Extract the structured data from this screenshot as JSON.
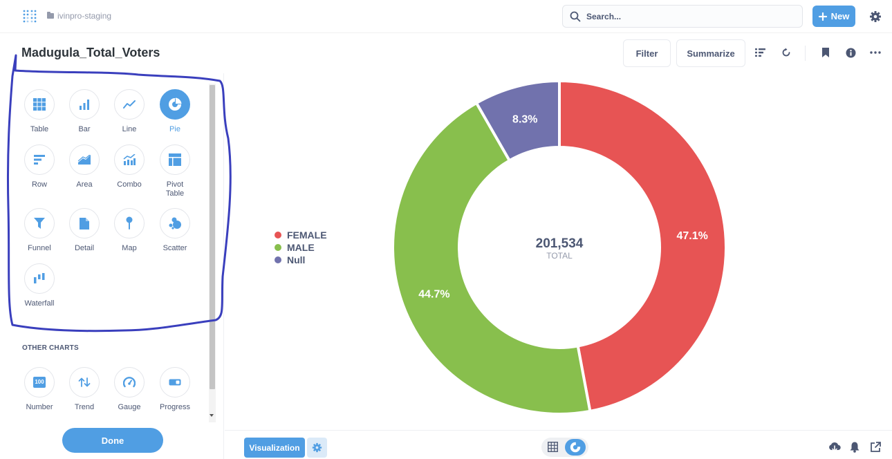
{
  "topbar": {
    "breadcrumb": "ivinpro-staging",
    "search_placeholder": "Search...",
    "new_label": "New"
  },
  "header": {
    "title": "Madugula_Total_Voters",
    "filter_label": "Filter",
    "summarize_label": "Summarize"
  },
  "sidebar": {
    "chart_types": [
      {
        "label": "Table",
        "icon": "table-icon"
      },
      {
        "label": "Bar",
        "icon": "bar-chart-icon"
      },
      {
        "label": "Line",
        "icon": "line-chart-icon"
      },
      {
        "label": "Pie",
        "icon": "pie-chart-icon",
        "selected": true
      },
      {
        "label": "Row",
        "icon": "row-chart-icon"
      },
      {
        "label": "Area",
        "icon": "area-chart-icon"
      },
      {
        "label": "Combo",
        "icon": "combo-chart-icon"
      },
      {
        "label": "Pivot\nTable",
        "icon": "pivot-table-icon"
      },
      {
        "label": "Funnel",
        "icon": "funnel-icon"
      },
      {
        "label": "Detail",
        "icon": "document-icon"
      },
      {
        "label": "Map",
        "icon": "map-pin-icon"
      },
      {
        "label": "Scatter",
        "icon": "scatter-icon"
      },
      {
        "label": "Waterfall",
        "icon": "waterfall-icon"
      }
    ],
    "other_charts_title": "OTHER CHARTS",
    "other_charts": [
      {
        "label": "Number",
        "icon": "number-icon",
        "glyph": "100"
      },
      {
        "label": "Trend",
        "icon": "trend-icon"
      },
      {
        "label": "Gauge",
        "icon": "gauge-icon"
      },
      {
        "label": "Progress",
        "icon": "progress-icon"
      }
    ],
    "done_label": "Done"
  },
  "chart_data": {
    "type": "pie",
    "variant": "donut",
    "categories": [
      "FEMALE",
      "MALE",
      "Null"
    ],
    "values": [
      47.1,
      44.7,
      8.3
    ],
    "value_labels": [
      "47.1%",
      "44.7%",
      "8.3%"
    ],
    "colors": [
      "#e75454",
      "#88bf4d",
      "#7172ad"
    ],
    "total_value": "201,534",
    "total_label": "TOTAL",
    "legend_position": "left"
  },
  "bottombar": {
    "visualization_label": "Visualization"
  }
}
